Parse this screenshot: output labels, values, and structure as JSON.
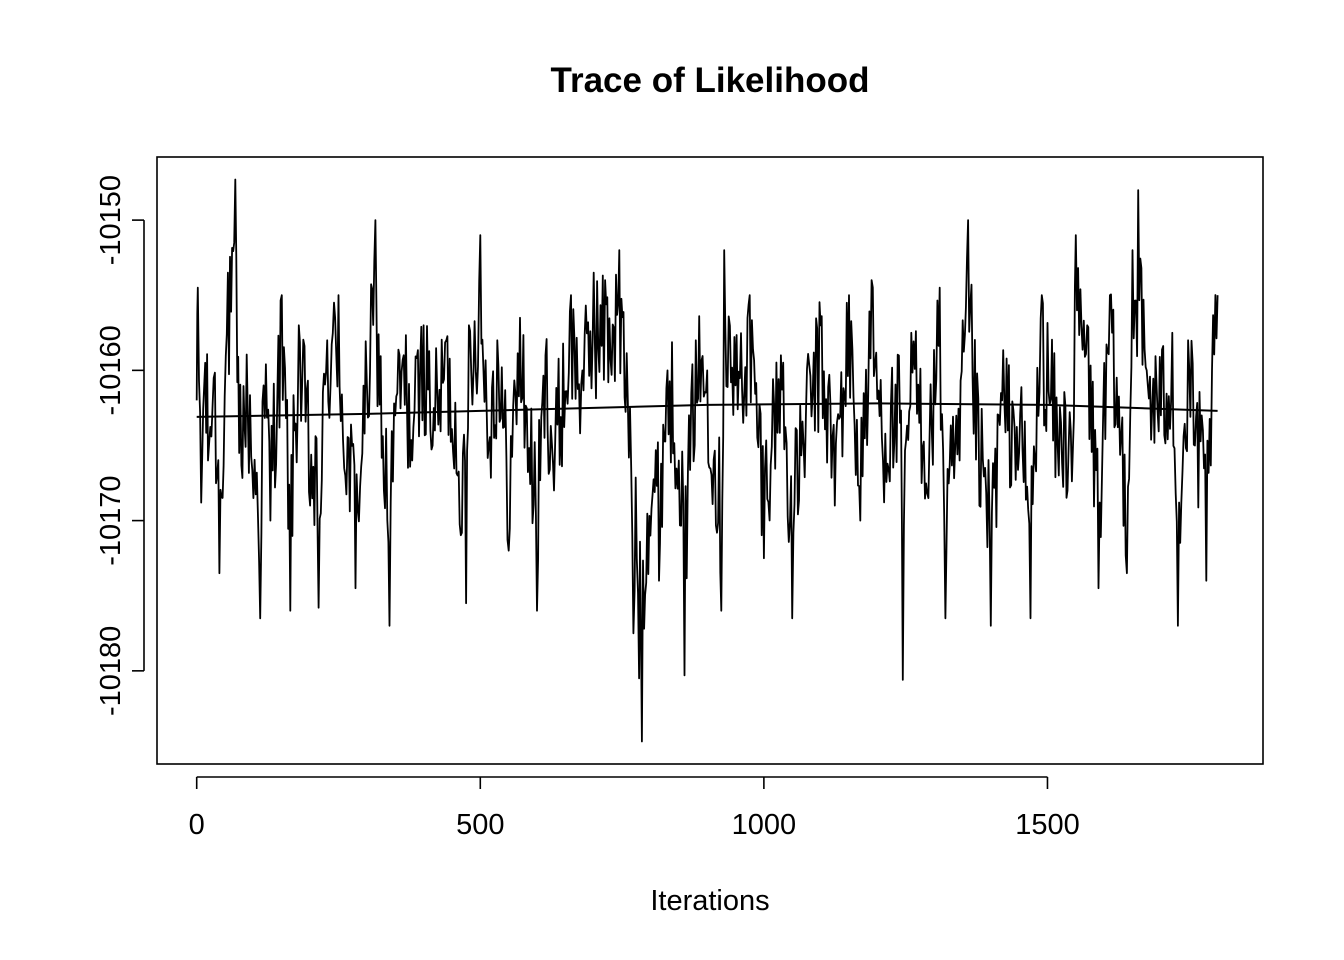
{
  "chart_data": {
    "type": "line",
    "title": "Trace of Likelihood",
    "xlabel": "Iterations",
    "ylabel": "",
    "xlim": [
      -70,
      1880
    ],
    "ylim": [
      -10186.2,
      -10145.8
    ],
    "x_ticks": [
      0,
      500,
      1000,
      1500
    ],
    "x_tick_labels": [
      "0",
      "500",
      "1000",
      "1500"
    ],
    "y_ticks": [
      -10180,
      -10170,
      -10160,
      -10150
    ],
    "y_tick_labels": [
      "-10180",
      "-10170",
      "-10160",
      "-10150"
    ],
    "grid": false,
    "legend": "none",
    "n_iterations": 1800,
    "series": [
      {
        "role": "trace",
        "x": [
          0,
          2,
          8,
          15,
          20,
          30,
          40,
          55,
          68,
          75,
          90,
          100,
          112,
          118,
          130,
          150,
          165,
          180,
          200,
          215,
          230,
          250,
          262,
          280,
          300,
          315,
          330,
          340,
          350,
          365,
          380,
          400,
          420,
          440,
          460,
          475,
          480,
          500,
          515,
          530,
          550,
          570,
          600,
          615,
          630,
          660,
          680,
          700,
          720,
          745,
          760,
          770,
          780,
          785,
          800,
          815,
          830,
          850,
          860,
          880,
          900,
          925,
          930,
          950,
          975,
          1000,
          1030,
          1050,
          1070,
          1100,
          1125,
          1150,
          1170,
          1190,
          1210,
          1240,
          1245,
          1260,
          1290,
          1310,
          1320,
          1345,
          1360,
          1380,
          1400,
          1420,
          1430,
          1450,
          1470,
          1490,
          1520,
          1545,
          1550,
          1570,
          1590,
          1610,
          1640,
          1650,
          1660,
          1675,
          1700,
          1720,
          1730,
          1750,
          1760,
          1780,
          1790,
          1800
        ],
        "y": [
          -10162,
          -10154.5,
          -10168.8,
          -10159.5,
          -10166,
          -10160.5,
          -10173.5,
          -10153.5,
          -10147.3,
          -10165.5,
          -10162.5,
          -10168.5,
          -10176.5,
          -10161,
          -10170,
          -10155,
          -10176,
          -10157,
          -10169,
          -10175.8,
          -10158,
          -10155,
          -10167,
          -10174.5,
          -10161,
          -10150,
          -10168,
          -10177,
          -10163,
          -10159,
          -10166,
          -10157,
          -10164,
          -10158,
          -10167,
          -10175.5,
          -10157,
          -10151,
          -10165,
          -10158,
          -10172,
          -10156.5,
          -10176,
          -10159,
          -10168,
          -10155,
          -10160,
          -10153.5,
          -10154,
          -10152,
          -10162,
          -10177.5,
          -10180.5,
          -10185,
          -10171,
          -10174,
          -10160,
          -10166,
          -10180.3,
          -10158,
          -10160,
          -10176,
          -10152,
          -10161,
          -10155,
          -10172.5,
          -10159,
          -10176.5,
          -10165,
          -10157,
          -10169,
          -10155,
          -10170,
          -10154,
          -10166,
          -10163.5,
          -10180.6,
          -10157.5,
          -10168.5,
          -10154.5,
          -10176.5,
          -10166,
          -10150,
          -10169,
          -10177,
          -10162,
          -10164,
          -10165.5,
          -10176.5,
          -10155,
          -10167,
          -10165,
          -10151,
          -10157,
          -10174.5,
          -10155,
          -10173.5,
          -10152,
          -10148,
          -10160,
          -10163,
          -10157.5,
          -10177,
          -10160,
          -10165,
          -10174,
          -10160,
          -10155
        ]
      },
      {
        "role": "running-mean",
        "x": [
          0,
          300,
          600,
          900,
          1200,
          1500,
          1800
        ],
        "y": [
          -10163.1,
          -10162.9,
          -10162.6,
          -10162.3,
          -10162.2,
          -10162.3,
          -10162.7
        ]
      }
    ]
  }
}
